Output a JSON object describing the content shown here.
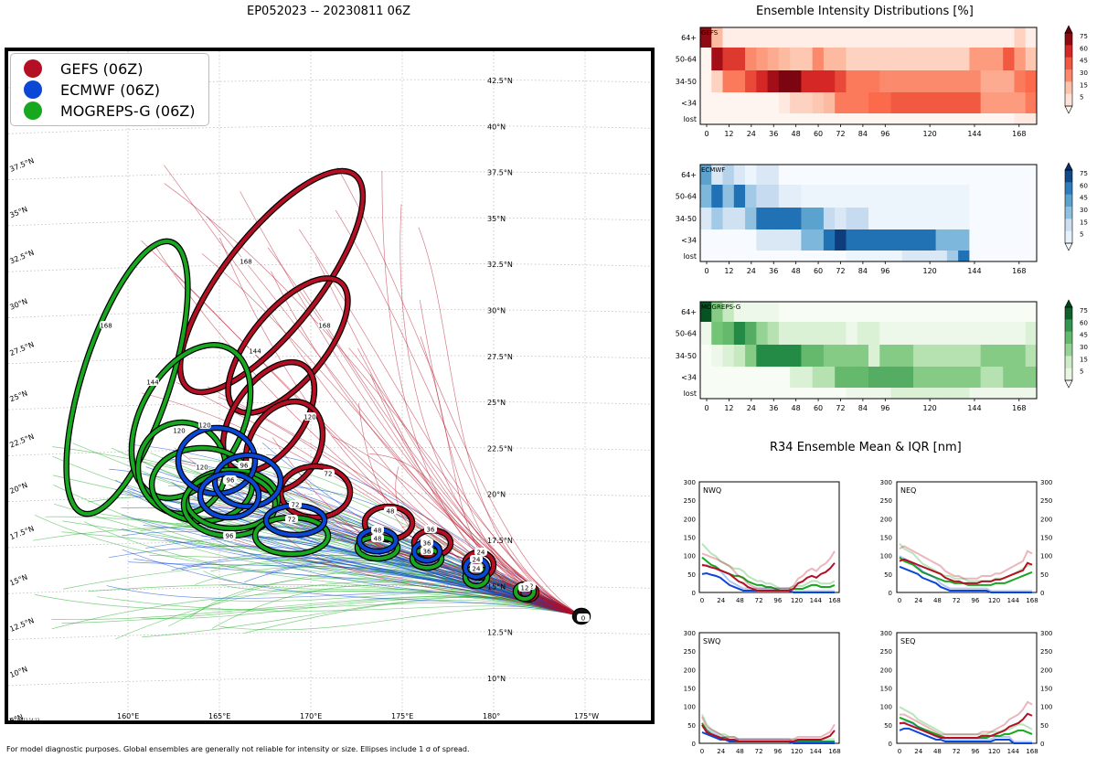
{
  "map": {
    "title": "EP052023 -- 20230811 06Z",
    "lat_labels": [
      "42.5°N",
      "40°N",
      "37.5°N",
      "35°N",
      "32.5°N",
      "30°N",
      "27.5°N",
      "25°N",
      "22.5°N",
      "20°N",
      "17.5°N",
      "15°N",
      "12.5°N",
      "10°N"
    ],
    "left_lat_labels": [
      "37.5°N",
      "35°N",
      "32.5°N",
      "30°N",
      "27.5°N",
      "25°N",
      "22.5°N",
      "20°N",
      "17.5°N",
      "15°N",
      "12.5°N",
      "10°N",
      "5°N"
    ],
    "lon_labels": [
      "160°E",
      "165°E",
      "170°E",
      "175°E",
      "180°",
      "175°W"
    ],
    "legend": [
      {
        "label": "GEFS (06Z)",
        "color": "#b50f24"
      },
      {
        "label": "ECMWF (06Z)",
        "color": "#0b47d6"
      },
      {
        "label": "MOGREPS-G (06Z)",
        "color": "#18a820"
      }
    ],
    "stamp": "20230811 14:13",
    "footnote": "For model diagnostic purposes. Global ensembles are generally not reliable for intensity or size. Ellipses include 1 σ of spread."
  },
  "colors": {
    "gefs": "#b50f24",
    "ecmwf": "#0b47d6",
    "mogreps": "#18a820"
  },
  "chart_data": [
    {
      "type": "heatmap",
      "title": "Ensemble Intensity Distributions [%]",
      "panel": "GEFS",
      "rows": [
        "64+",
        "50-64",
        "34-50",
        "<34",
        "lost"
      ],
      "x_ticks": [
        "0",
        "12",
        "24",
        "36",
        "48",
        "60",
        "72",
        "84",
        "96",
        "120",
        "144",
        "168"
      ],
      "colorbar_ticks": [
        "75",
        "60",
        "45",
        "30",
        "15",
        "5"
      ],
      "cmap": "Reds",
      "values": [
        [
          90,
          25,
          3,
          3,
          3,
          3,
          3,
          3,
          3,
          3,
          3,
          3,
          3,
          3,
          3,
          3,
          3,
          3,
          3,
          3,
          3,
          3,
          3,
          3,
          3,
          3,
          3,
          3,
          15,
          3
        ],
        [
          0,
          85,
          65,
          65,
          40,
          35,
          30,
          25,
          20,
          20,
          40,
          25,
          25,
          15,
          15,
          15,
          15,
          15,
          15,
          15,
          15,
          15,
          15,
          15,
          35,
          35,
          35,
          55,
          35,
          20
        ],
        [
          0,
          15,
          45,
          45,
          60,
          70,
          85,
          95,
          95,
          70,
          70,
          70,
          60,
          45,
          45,
          45,
          40,
          40,
          40,
          40,
          40,
          40,
          40,
          40,
          40,
          30,
          30,
          30,
          45,
          50
        ],
        [
          0,
          0,
          0,
          0,
          0,
          0,
          0,
          5,
          15,
          15,
          20,
          25,
          45,
          45,
          45,
          50,
          50,
          55,
          55,
          55,
          55,
          55,
          55,
          55,
          55,
          35,
          35,
          35,
          35,
          45
        ],
        [
          0,
          0,
          0,
          0,
          0,
          0,
          0,
          0,
          0,
          0,
          0,
          0,
          0,
          0,
          0,
          0,
          0,
          0,
          0,
          0,
          0,
          0,
          0,
          0,
          0,
          0,
          0,
          0,
          5,
          5
        ]
      ]
    },
    {
      "type": "heatmap",
      "panel": "ECMWF",
      "rows": [
        "64+",
        "50-64",
        "34-50",
        "<34",
        "lost"
      ],
      "x_ticks": [
        "0",
        "12",
        "24",
        "36",
        "48",
        "60",
        "72",
        "84",
        "96",
        "120",
        "144",
        "168"
      ],
      "colorbar_ticks": [
        "75",
        "60",
        "45",
        "30",
        "15",
        "5"
      ],
      "cmap": "Blues",
      "values": [
        [
          55,
          15,
          30,
          15,
          5,
          15,
          15,
          0,
          0,
          0,
          0,
          0,
          0,
          0,
          0,
          0,
          0,
          0,
          0,
          0,
          0,
          0,
          0,
          0,
          0,
          0,
          0,
          0,
          0,
          0
        ],
        [
          45,
          75,
          40,
          75,
          35,
          25,
          25,
          10,
          10,
          5,
          5,
          5,
          5,
          5,
          5,
          5,
          5,
          5,
          5,
          5,
          5,
          5,
          5,
          5,
          0,
          0,
          0,
          0,
          0,
          0
        ],
        [
          15,
          35,
          20,
          20,
          40,
          75,
          75,
          75,
          75,
          55,
          55,
          25,
          15,
          25,
          25,
          5,
          5,
          5,
          5,
          5,
          5,
          5,
          5,
          5,
          0,
          0,
          0,
          0,
          0,
          0
        ],
        [
          0,
          0,
          0,
          0,
          0,
          15,
          15,
          15,
          15,
          45,
          45,
          75,
          95,
          75,
          75,
          75,
          75,
          75,
          75,
          75,
          75,
          45,
          45,
          45,
          0,
          0,
          0,
          0,
          0,
          0
        ],
        [
          0,
          0,
          0,
          0,
          0,
          0,
          0,
          0,
          0,
          0,
          0,
          0,
          0,
          5,
          5,
          5,
          5,
          5,
          15,
          15,
          15,
          15,
          35,
          75,
          0,
          0,
          0,
          0,
          0,
          0
        ]
      ]
    },
    {
      "type": "heatmap",
      "panel": "MOGREPS-G",
      "rows": [
        "64+",
        "50-64",
        "34-50",
        "<34",
        "lost"
      ],
      "x_ticks": [
        "0",
        "12",
        "24",
        "36",
        "48",
        "60",
        "72",
        "84",
        "96",
        "120",
        "144",
        "168"
      ],
      "colorbar_ticks": [
        "75",
        "60",
        "45",
        "30",
        "15",
        "5"
      ],
      "cmap": "Greens",
      "values": [
        [
          95,
          45,
          25,
          5,
          5,
          5,
          5,
          0,
          0,
          0,
          0,
          0,
          0,
          0,
          0,
          0,
          0,
          0,
          0,
          0,
          0,
          0,
          0,
          0,
          0,
          0,
          0,
          0,
          0,
          0
        ],
        [
          5,
          50,
          55,
          75,
          60,
          40,
          30,
          15,
          15,
          15,
          15,
          15,
          15,
          5,
          15,
          15,
          5,
          5,
          5,
          5,
          5,
          5,
          5,
          5,
          5,
          5,
          5,
          5,
          5,
          15
        ],
        [
          0,
          5,
          15,
          25,
          45,
          75,
          75,
          75,
          75,
          55,
          55,
          45,
          45,
          45,
          45,
          15,
          45,
          45,
          45,
          30,
          30,
          30,
          30,
          30,
          30,
          45,
          45,
          45,
          45,
          30
        ],
        [
          0,
          0,
          0,
          0,
          0,
          0,
          0,
          0,
          15,
          15,
          30,
          30,
          55,
          55,
          55,
          60,
          60,
          60,
          60,
          45,
          45,
          45,
          45,
          45,
          45,
          30,
          30,
          45,
          45,
          45
        ],
        [
          0,
          0,
          0,
          0,
          0,
          0,
          0,
          0,
          0,
          0,
          0,
          0,
          0,
          5,
          5,
          5,
          5,
          15,
          15,
          15,
          15,
          15,
          15,
          15,
          5,
          5,
          5,
          5,
          5,
          5
        ]
      ]
    },
    {
      "type": "line",
      "title": "R34 Ensemble Mean & IQR [nm]",
      "panels": [
        {
          "label": "NWQ",
          "gefs": [
            75,
            72,
            68,
            65,
            60,
            55,
            50,
            40,
            30,
            25,
            15,
            10,
            5,
            5,
            5,
            5,
            5,
            5,
            5,
            5,
            10,
            25,
            30,
            40,
            45,
            40,
            50,
            55,
            65,
            80
          ],
          "ecmwf": [
            50,
            52,
            48,
            45,
            40,
            30,
            20,
            15,
            10,
            5,
            5,
            5,
            5,
            5,
            5,
            5,
            5,
            5,
            5,
            5,
            0,
            0,
            0,
            0,
            0,
            0,
            0,
            0,
            0,
            0
          ],
          "mogreps": [
            95,
            85,
            75,
            70,
            60,
            55,
            50,
            45,
            45,
            40,
            30,
            25,
            20,
            20,
            15,
            15,
            10,
            5,
            5,
            5,
            10,
            10,
            10,
            15,
            20,
            20,
            15,
            15,
            15,
            20
          ]
        },
        {
          "label": "NEQ",
          "gefs": [
            85,
            90,
            85,
            80,
            75,
            70,
            65,
            60,
            55,
            50,
            40,
            35,
            30,
            30,
            25,
            25,
            25,
            25,
            30,
            30,
            30,
            35,
            35,
            40,
            45,
            50,
            55,
            60,
            80,
            75
          ],
          "ecmwf": [
            70,
            65,
            60,
            55,
            50,
            40,
            35,
            30,
            25,
            15,
            10,
            5,
            5,
            5,
            5,
            5,
            5,
            5,
            5,
            5,
            0,
            0,
            0,
            0,
            0,
            0,
            0,
            0,
            0,
            0
          ],
          "mogreps": [
            95,
            85,
            80,
            75,
            65,
            55,
            50,
            45,
            40,
            35,
            30,
            30,
            25,
            25,
            25,
            20,
            20,
            20,
            20,
            20,
            20,
            25,
            25,
            25,
            30,
            35,
            40,
            45,
            50,
            55
          ]
        },
        {
          "label": "SWQ",
          "gefs": [
            50,
            30,
            25,
            20,
            15,
            10,
            10,
            10,
            5,
            5,
            5,
            5,
            5,
            5,
            5,
            5,
            5,
            5,
            5,
            5,
            5,
            10,
            10,
            10,
            10,
            10,
            10,
            15,
            20,
            35
          ],
          "ecmwf": [
            30,
            25,
            20,
            15,
            10,
            10,
            5,
            5,
            5,
            5,
            5,
            5,
            5,
            5,
            5,
            5,
            5,
            5,
            5,
            5,
            0,
            0,
            0,
            0,
            0,
            0,
            0,
            0,
            0,
            0
          ],
          "mogreps": [
            55,
            35,
            25,
            20,
            15,
            15,
            10,
            10,
            5,
            5,
            5,
            5,
            5,
            5,
            5,
            5,
            5,
            5,
            5,
            5,
            5,
            5,
            5,
            5,
            5,
            5,
            5,
            5,
            5,
            5
          ]
        },
        {
          "label": "SEQ",
          "gefs": [
            55,
            55,
            50,
            45,
            40,
            35,
            30,
            25,
            20,
            15,
            15,
            15,
            15,
            15,
            15,
            15,
            15,
            15,
            20,
            20,
            20,
            25,
            30,
            35,
            45,
            50,
            55,
            65,
            80,
            75
          ],
          "ecmwf": [
            35,
            40,
            40,
            35,
            30,
            25,
            20,
            15,
            10,
            10,
            5,
            5,
            5,
            5,
            5,
            5,
            5,
            5,
            5,
            5,
            5,
            10,
            10,
            10,
            10,
            0,
            0,
            0,
            0,
            0
          ],
          "mogreps": [
            70,
            65,
            60,
            55,
            45,
            40,
            35,
            30,
            25,
            20,
            15,
            15,
            15,
            15,
            15,
            15,
            15,
            15,
            15,
            15,
            20,
            20,
            20,
            25,
            25,
            30,
            35,
            35,
            30,
            25
          ]
        }
      ],
      "x_ticks": [
        "0",
        "24",
        "48",
        "72",
        "96",
        "120",
        "144",
        "168"
      ],
      "y_ticks": [
        "0",
        "50",
        "100",
        "150",
        "200",
        "250",
        "300"
      ],
      "ylim": [
        0,
        300
      ]
    }
  ]
}
